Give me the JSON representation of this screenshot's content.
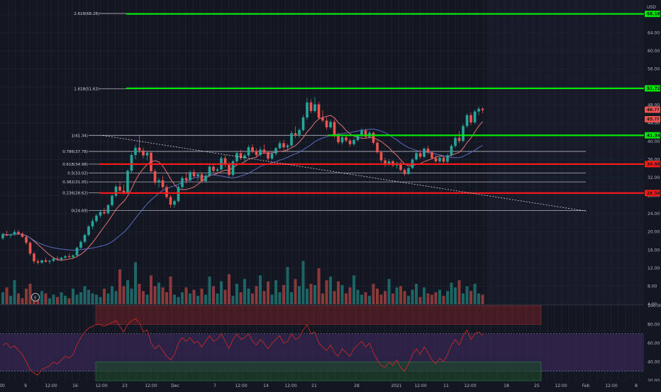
{
  "chart": {
    "currency": "USD",
    "colors": {
      "background": "#131722",
      "panel_shade": "#1a1e2b",
      "up": "#26a69a",
      "down": "#ef5350",
      "green_line": "#00e600",
      "red_line": "#ff1a1a",
      "fib_line": "#d1d4dc",
      "ma_fast": "#e57373",
      "ma_slow": "#5c6bc0",
      "rsi_band": "#3f2b62",
      "rsi_line": "#c62828"
    },
    "price_axis_ticks": [
      "68.00",
      "64.00",
      "60.00",
      "56.00",
      "52.00",
      "48.00",
      "44.00",
      "40.00",
      "36.00",
      "32.00",
      "28.00",
      "24.00",
      "20.00",
      "16.00",
      "12.00",
      "8.00",
      "4.00"
    ],
    "rsi_axis_ticks": [
      "100.00",
      "80.00",
      "60.00",
      "40.00",
      "20.00"
    ],
    "time_axis_ticks": [
      "00",
      "9",
      "12:00",
      "16",
      "12:00",
      "23",
      "12:00",
      "Dec",
      "7",
      "12:00",
      "14",
      "12:00",
      "21",
      "28",
      "2021",
      "12:00",
      "11",
      "12:00",
      "18",
      "25",
      "12:00",
      "Feb",
      "12:00",
      "8"
    ],
    "fib_labels": [
      "2.618(68.28)",
      "1.618(51.63)",
      "1(41.34)",
      "0.786(37.78)",
      "0.618(34.98)",
      "0.5(33.02)",
      "0.382(31.05)",
      "0.236(28.62)",
      "0(24.69)"
    ],
    "price_tags": {
      "green_top": "68.18",
      "green_mid": "51.72",
      "current_a": "46.??",
      "current_b": "45.??",
      "green_low": "41.34",
      "red_top": "34.98",
      "red_low": "28.58"
    },
    "earnings_marker": "E"
  },
  "chart_data": {
    "type": "candlestick",
    "price_range": [
      4,
      70
    ],
    "rsi_range": [
      20,
      100
    ],
    "fibonacci": [
      {
        "ratio": "2.618",
        "price": 68.28
      },
      {
        "ratio": "1.618",
        "price": 51.63
      },
      {
        "ratio": "1",
        "price": 41.34
      },
      {
        "ratio": "0.786",
        "price": 37.78
      },
      {
        "ratio": "0.618",
        "price": 34.98
      },
      {
        "ratio": "0.5",
        "price": 33.02
      },
      {
        "ratio": "0.382",
        "price": 31.05
      },
      {
        "ratio": "0.236",
        "price": 28.62
      },
      {
        "ratio": "0",
        "price": 24.69
      }
    ],
    "horizontal_lines": [
      {
        "color": "green",
        "price": 68.18
      },
      {
        "color": "green",
        "price": 51.72
      },
      {
        "color": "green",
        "price": 41.34
      },
      {
        "color": "red",
        "price": 34.98
      },
      {
        "color": "red",
        "price": 28.58
      }
    ],
    "trendline": {
      "from_price": 41.3,
      "to_price": 24.6
    },
    "rsi_zones": {
      "upper": [
        80,
        100
      ],
      "lower": [
        20,
        40
      ],
      "band": [
        30,
        70
      ]
    },
    "candles": [
      [
        18.6,
        19.8,
        18.2,
        19.5
      ],
      [
        19.5,
        20.3,
        19.0,
        19.2
      ],
      [
        19.2,
        19.6,
        18.6,
        19.4
      ],
      [
        19.4,
        20.5,
        19.1,
        20.0
      ],
      [
        20.0,
        20.4,
        19.3,
        19.6
      ],
      [
        19.6,
        19.9,
        18.7,
        18.9
      ],
      [
        18.9,
        19.3,
        17.2,
        17.6
      ],
      [
        17.6,
        17.9,
        14.8,
        15.2
      ],
      [
        15.2,
        15.6,
        13.0,
        13.5
      ],
      [
        13.5,
        14.0,
        12.8,
        13.2
      ],
      [
        13.2,
        13.9,
        12.9,
        13.7
      ],
      [
        13.7,
        14.3,
        13.2,
        13.4
      ],
      [
        13.4,
        13.8,
        12.9,
        13.6
      ],
      [
        13.6,
        14.4,
        13.3,
        14.1
      ],
      [
        14.1,
        14.6,
        13.6,
        13.9
      ],
      [
        13.9,
        14.5,
        13.5,
        14.3
      ],
      [
        14.3,
        14.9,
        14.0,
        14.6
      ],
      [
        14.6,
        15.2,
        14.2,
        14.4
      ],
      [
        14.4,
        15.0,
        14.1,
        14.8
      ],
      [
        14.8,
        16.8,
        14.6,
        16.5
      ],
      [
        16.5,
        18.2,
        16.2,
        17.8
      ],
      [
        17.8,
        19.6,
        17.5,
        19.3
      ],
      [
        19.3,
        21.5,
        19.0,
        21.2
      ],
      [
        21.2,
        23.0,
        20.6,
        22.4
      ],
      [
        22.4,
        24.0,
        22.0,
        23.6
      ],
      [
        23.6,
        24.9,
        23.1,
        24.4
      ],
      [
        24.4,
        25.3,
        23.8,
        24.1
      ],
      [
        24.1,
        26.2,
        23.9,
        25.9
      ],
      [
        25.9,
        28.3,
        25.5,
        28.0
      ],
      [
        28.0,
        30.4,
        27.6,
        30.0
      ],
      [
        30.0,
        31.2,
        28.5,
        29.1
      ],
      [
        29.1,
        30.5,
        28.2,
        28.6
      ],
      [
        28.6,
        33.8,
        28.3,
        33.5
      ],
      [
        33.5,
        37.5,
        33.0,
        37.0
      ],
      [
        37.0,
        39.2,
        36.1,
        38.6
      ],
      [
        38.6,
        41.3,
        37.4,
        38.0
      ],
      [
        38.0,
        38.6,
        36.3,
        36.9
      ],
      [
        36.9,
        38.0,
        35.8,
        37.5
      ],
      [
        37.5,
        37.9,
        33.0,
        33.4
      ],
      [
        33.4,
        33.9,
        30.4,
        30.9
      ],
      [
        30.9,
        31.9,
        29.8,
        31.4
      ],
      [
        31.4,
        32.4,
        29.4,
        29.9
      ],
      [
        29.9,
        30.4,
        27.3,
        27.7
      ],
      [
        27.7,
        28.1,
        25.3,
        26.0
      ],
      [
        26.0,
        27.2,
        25.3,
        26.8
      ],
      [
        26.8,
        30.3,
        26.5,
        29.9
      ],
      [
        29.9,
        32.4,
        29.3,
        31.9
      ],
      [
        31.9,
        33.2,
        30.7,
        31.4
      ],
      [
        31.4,
        33.6,
        31.0,
        33.2
      ],
      [
        33.2,
        33.8,
        31.9,
        32.3
      ],
      [
        32.3,
        33.1,
        31.3,
        32.7
      ],
      [
        32.7,
        33.2,
        30.8,
        31.2
      ],
      [
        31.2,
        32.8,
        30.8,
        32.4
      ],
      [
        32.4,
        34.8,
        32.1,
        34.4
      ],
      [
        34.4,
        35.1,
        33.1,
        33.5
      ],
      [
        33.5,
        34.2,
        32.8,
        33.8
      ],
      [
        33.8,
        36.8,
        33.5,
        36.3
      ],
      [
        36.3,
        37.0,
        34.3,
        34.8
      ],
      [
        34.8,
        35.4,
        32.0,
        32.6
      ],
      [
        32.6,
        35.9,
        32.2,
        35.6
      ],
      [
        35.6,
        37.9,
        35.2,
        37.4
      ],
      [
        37.4,
        38.2,
        35.9,
        36.3
      ],
      [
        36.3,
        37.4,
        35.4,
        36.9
      ],
      [
        36.9,
        39.2,
        36.5,
        38.7
      ],
      [
        38.7,
        39.4,
        37.4,
        37.8
      ],
      [
        37.8,
        38.4,
        36.4,
        37.0
      ],
      [
        37.0,
        38.8,
        36.6,
        38.2
      ],
      [
        38.2,
        39.3,
        37.2,
        37.6
      ],
      [
        37.6,
        37.9,
        35.8,
        36.2
      ],
      [
        36.2,
        37.8,
        35.9,
        37.3
      ],
      [
        37.3,
        38.8,
        36.8,
        38.5
      ],
      [
        38.5,
        40.1,
        38.2,
        39.6
      ],
      [
        39.6,
        40.3,
        38.2,
        38.7
      ],
      [
        38.7,
        39.5,
        37.9,
        39.1
      ],
      [
        39.1,
        42.3,
        38.8,
        41.8
      ],
      [
        41.8,
        43.3,
        40.8,
        41.3
      ],
      [
        41.3,
        42.9,
        40.8,
        42.5
      ],
      [
        42.5,
        45.8,
        42.2,
        45.3
      ],
      [
        45.3,
        49.6,
        44.8,
        48.6
      ],
      [
        48.6,
        49.3,
        46.2,
        46.7
      ],
      [
        46.7,
        49.8,
        46.3,
        48.2
      ],
      [
        48.2,
        48.8,
        44.8,
        45.2
      ],
      [
        45.2,
        46.9,
        44.2,
        44.6
      ],
      [
        44.6,
        45.3,
        42.6,
        43.1
      ],
      [
        43.1,
        44.8,
        42.8,
        44.3
      ],
      [
        44.3,
        44.9,
        40.8,
        41.2
      ],
      [
        41.2,
        41.9,
        39.3,
        39.8
      ],
      [
        39.8,
        41.3,
        39.3,
        40.9
      ],
      [
        40.9,
        41.5,
        39.8,
        40.2
      ],
      [
        40.2,
        40.6,
        38.8,
        39.4
      ],
      [
        39.4,
        40.8,
        39.0,
        40.3
      ],
      [
        40.3,
        41.6,
        40.0,
        41.2
      ],
      [
        41.2,
        42.9,
        40.8,
        42.4
      ],
      [
        42.4,
        42.8,
        40.6,
        41.0
      ],
      [
        41.0,
        42.3,
        40.6,
        41.9
      ],
      [
        41.9,
        42.2,
        39.3,
        39.7
      ],
      [
        39.7,
        40.2,
        37.3,
        37.6
      ],
      [
        37.6,
        38.0,
        35.3,
        35.8
      ],
      [
        35.8,
        36.4,
        34.4,
        34.9
      ],
      [
        34.9,
        36.1,
        34.6,
        35.6
      ],
      [
        35.6,
        35.9,
        34.3,
        34.7
      ],
      [
        34.7,
        35.5,
        34.0,
        35.2
      ],
      [
        35.2,
        35.5,
        33.3,
        33.7
      ],
      [
        33.7,
        34.0,
        32.4,
        32.8
      ],
      [
        32.8,
        34.4,
        32.6,
        34.1
      ],
      [
        34.1,
        36.3,
        33.9,
        36.0
      ],
      [
        36.0,
        37.8,
        35.7,
        37.4
      ],
      [
        37.4,
        38.2,
        36.2,
        36.6
      ],
      [
        36.6,
        38.8,
        36.3,
        38.4
      ],
      [
        38.4,
        39.0,
        37.2,
        37.6
      ],
      [
        37.6,
        37.8,
        36.0,
        36.3
      ],
      [
        36.3,
        37.0,
        35.3,
        35.6
      ],
      [
        35.6,
        36.8,
        35.2,
        36.4
      ],
      [
        36.4,
        36.9,
        35.1,
        35.5
      ],
      [
        35.5,
        37.3,
        35.2,
        36.9
      ],
      [
        36.9,
        39.4,
        36.6,
        39.0
      ],
      [
        39.0,
        41.2,
        38.6,
        40.8
      ],
      [
        40.8,
        42.3,
        39.6,
        40.1
      ],
      [
        40.1,
        43.8,
        39.8,
        43.4
      ],
      [
        43.4,
        46.2,
        43.0,
        45.8
      ],
      [
        45.8,
        46.4,
        43.6,
        44.2
      ],
      [
        44.2,
        47.0,
        43.8,
        46.6
      ],
      [
        46.6,
        47.7,
        45.8,
        47.2
      ],
      [
        47.2,
        47.6,
        46.2,
        46.9
      ]
    ],
    "volume": [
      20,
      28,
      14,
      40,
      18,
      10,
      26,
      34,
      16,
      12,
      22,
      18,
      10,
      16,
      12,
      20,
      14,
      10,
      26,
      16,
      20,
      30,
      24,
      18,
      16,
      12,
      26,
      18,
      30,
      22,
      58,
      30,
      40,
      26,
      70,
      34,
      22,
      16,
      48,
      30,
      36,
      28,
      20,
      46,
      16,
      12,
      20,
      28,
      18,
      24,
      14,
      26,
      16,
      46,
      30,
      18,
      38,
      24,
      50,
      14,
      34,
      20,
      42,
      26,
      18,
      30,
      48,
      22,
      38,
      16,
      40,
      20,
      32,
      62,
      20,
      42,
      30,
      72,
      26,
      34,
      32,
      60,
      18,
      40,
      46,
      22,
      38,
      32,
      18,
      28,
      48,
      24,
      16,
      20,
      14,
      34,
      26,
      16,
      22,
      42,
      18,
      28,
      30,
      22,
      14,
      24,
      34,
      12,
      28,
      18,
      16,
      20,
      24,
      14,
      22,
      36,
      28,
      40,
      18,
      30,
      22,
      34,
      18,
      16
    ],
    "rsi": [
      58,
      60,
      55,
      57,
      52,
      48,
      40,
      32,
      28,
      26,
      32,
      34,
      36,
      40,
      38,
      42,
      46,
      44,
      48,
      58,
      66,
      72,
      76,
      78,
      80,
      80,
      78,
      80,
      82,
      84,
      78,
      72,
      80,
      84,
      86,
      82,
      72,
      74,
      60,
      54,
      58,
      52,
      46,
      42,
      48,
      60,
      66,
      62,
      66,
      60,
      62,
      56,
      62,
      68,
      62,
      64,
      70,
      62,
      54,
      64,
      70,
      64,
      66,
      70,
      62,
      58,
      64,
      60,
      54,
      60,
      64,
      68,
      60,
      62,
      70,
      64,
      66,
      74,
      80,
      70,
      72,
      60,
      56,
      52,
      58,
      50,
      46,
      54,
      50,
      46,
      54,
      58,
      62,
      56,
      60,
      50,
      42,
      36,
      34,
      40,
      36,
      42,
      34,
      30,
      38,
      48,
      54,
      48,
      56,
      50,
      42,
      38,
      44,
      40,
      48,
      58,
      64,
      58,
      68,
      74,
      64,
      70,
      72,
      68
    ]
  }
}
